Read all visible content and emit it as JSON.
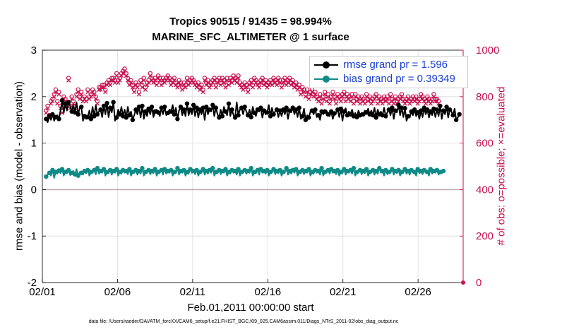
{
  "title_line1": "Tropics 90515 / 91435 = 98.994%",
  "title_line2": "MARINE_SFC_ALTIMETER @ 1 surface",
  "xlabel": "Feb.01,2011 00:00:00 start",
  "ylabel_left": "rmse and bias (model - observation)",
  "ylabel_right": "# of obs: o=possible; ×=evaluated",
  "footnote": "data file: /Users/raeder/DAI/ATM_forcXX/CAM6_setup/f.e21.FHIST_BGC.f09_025.CAM6assim.011/Diags_NTrS_2011-02/obs_diag_output.nc",
  "colors": {
    "rmse": "#000000",
    "bias": "#0e8a87",
    "counts": "#c8104f",
    "legend_text": "#1a3fd6",
    "grid": "#dcdcdc",
    "zero_line": "#c6a8b4"
  },
  "chart_data": {
    "type": "line",
    "x_tick_labels": [
      "02/01",
      "02/06",
      "02/11",
      "02/16",
      "02/21",
      "02/26"
    ],
    "x_tick_days": [
      0,
      5,
      10,
      15,
      20,
      25
    ],
    "xlim_days": [
      0,
      28
    ],
    "ylim_left": [
      -2,
      3
    ],
    "y_ticks_left": [
      "-2",
      "-1",
      "0",
      "1",
      "2",
      "3"
    ],
    "ylim_right": [
      0,
      1000
    ],
    "y_ticks_right": [
      "0",
      "200",
      "400",
      "600",
      "800",
      "1000"
    ],
    "grid": true,
    "legend_position": "top-right",
    "series": [
      {
        "name": "rmse grand pr = 1.596",
        "axis": "left",
        "values": [
          1.52,
          1.45,
          1.58,
          1.5,
          1.62,
          1.48,
          1.56,
          1.6,
          1.52,
          1.7,
          1.92,
          1.65,
          1.85,
          1.7,
          1.88,
          1.8,
          1.68,
          1.82,
          1.66,
          1.88,
          1.62,
          1.76,
          1.78,
          1.48,
          1.58,
          1.52,
          1.56,
          1.7,
          1.52,
          1.78,
          1.58,
          1.82,
          1.62,
          1.68,
          1.72,
          1.56,
          1.8,
          1.62,
          1.86,
          1.56,
          1.76,
          1.66,
          1.88,
          1.48,
          1.55,
          1.72,
          1.62,
          1.78,
          1.58,
          1.72,
          1.55,
          1.78,
          1.6,
          1.68,
          1.5,
          1.6,
          1.72,
          1.62,
          1.78,
          1.55,
          1.8,
          1.52,
          1.68,
          1.58,
          1.74,
          1.62,
          1.78,
          1.56,
          1.68,
          1.72,
          1.66,
          1.58,
          1.76,
          1.62,
          1.78,
          1.6,
          1.65,
          1.72,
          1.68,
          1.82,
          1.62,
          1.76,
          1.52,
          1.7,
          1.78,
          1.6,
          1.72,
          1.58,
          1.85,
          1.6,
          1.72,
          1.62,
          1.82,
          1.58,
          1.76,
          1.55,
          1.72,
          1.62,
          1.76,
          1.5,
          1.78,
          1.62,
          1.72,
          1.68,
          1.82,
          1.58,
          1.76,
          1.62,
          1.55,
          1.72,
          1.58,
          1.78,
          1.68,
          1.6,
          1.85,
          1.58,
          1.72,
          1.6,
          1.55,
          1.88,
          1.6,
          1.72,
          1.76,
          1.62,
          1.78,
          1.68,
          1.6,
          1.72,
          1.56,
          1.78,
          1.65,
          1.58,
          1.72,
          1.68,
          1.76,
          1.55,
          1.7,
          1.62,
          1.66,
          1.82,
          1.58,
          1.76,
          1.62,
          1.68,
          1.72,
          1.56,
          1.7,
          1.58,
          1.72,
          1.62,
          1.76,
          1.52,
          1.7,
          1.66,
          1.76,
          1.62,
          1.72,
          1.56,
          1.76,
          1.52,
          1.58,
          1.74,
          1.5,
          1.6,
          1.55,
          1.68,
          1.7,
          1.62,
          1.72,
          1.56,
          1.6,
          1.5,
          1.68,
          1.62,
          1.68,
          1.7,
          1.62,
          1.58,
          1.68,
          1.52,
          1.64,
          1.66,
          1.72,
          1.56,
          1.74,
          1.48,
          1.68,
          1.75,
          1.6,
          1.68,
          1.62,
          1.72,
          1.58,
          1.65,
          1.56,
          1.7,
          1.6,
          1.65,
          1.62,
          1.7,
          1.66,
          1.74,
          1.62,
          1.7,
          1.6,
          1.76,
          1.55,
          1.72,
          1.62,
          1.68,
          1.6,
          1.76,
          1.58,
          1.66,
          1.72,
          1.6,
          1.76,
          1.52,
          1.7,
          1.66,
          1.82,
          1.6,
          1.76,
          1.56,
          1.75,
          1.48,
          1.58,
          1.55,
          1.68,
          1.6,
          1.72,
          1.58,
          1.66,
          1.52,
          1.7,
          1.56,
          1.76,
          1.62,
          1.72,
          1.55,
          1.68,
          1.6,
          1.74,
          1.56,
          1.72,
          1.58,
          1.8,
          1.52,
          1.7,
          1.62,
          1.78,
          1.55,
          1.72,
          1.68,
          1.6,
          1.74,
          1.5,
          1.55,
          1.62
        ]
      },
      {
        "name": "bias grand pr = 0.39349",
        "axis": "left",
        "values": [
          0.28,
          0.32,
          0.36,
          0.3,
          0.42,
          0.25,
          0.38,
          0.34,
          0.41,
          0.35,
          0.44,
          0.3,
          0.38,
          0.35,
          0.42,
          0.31,
          0.36,
          0.4,
          0.33,
          0.44,
          0.3,
          0.38,
          0.36,
          0.32,
          0.4,
          0.35,
          0.42,
          0.3,
          0.38,
          0.36,
          0.42,
          0.33,
          0.46,
          0.34,
          0.4,
          0.36,
          0.44,
          0.3,
          0.38,
          0.35,
          0.42,
          0.32,
          0.4,
          0.36,
          0.44,
          0.3,
          0.38,
          0.34,
          0.42,
          0.36,
          0.4,
          0.33,
          0.44,
          0.3,
          0.38,
          0.36,
          0.42,
          0.32,
          0.4,
          0.34,
          0.46,
          0.3,
          0.38,
          0.36,
          0.42,
          0.33,
          0.4,
          0.35,
          0.44,
          0.3,
          0.38,
          0.36,
          0.42,
          0.32,
          0.44,
          0.34,
          0.4,
          0.36,
          0.42,
          0.3,
          0.38,
          0.35,
          0.46,
          0.32,
          0.4,
          0.36,
          0.42,
          0.3,
          0.38,
          0.34,
          0.44,
          0.36,
          0.4,
          0.33,
          0.42,
          0.3,
          0.38,
          0.36,
          0.44,
          0.32,
          0.4,
          0.34,
          0.42,
          0.36,
          0.46,
          0.3,
          0.38,
          0.35,
          0.42,
          0.33,
          0.4,
          0.36,
          0.44,
          0.3,
          0.38,
          0.34,
          0.42,
          0.36,
          0.4,
          0.32,
          0.44,
          0.3,
          0.38,
          0.36,
          0.42,
          0.34,
          0.4,
          0.36,
          0.46,
          0.3,
          0.38,
          0.35,
          0.42,
          0.32,
          0.44,
          0.36,
          0.4,
          0.34,
          0.42,
          0.3,
          0.38,
          0.36,
          0.44,
          0.33,
          0.4,
          0.35,
          0.42,
          0.3,
          0.38,
          0.36,
          0.46,
          0.32,
          0.4,
          0.34,
          0.42,
          0.36,
          0.44,
          0.3,
          0.38,
          0.35,
          0.42,
          0.33,
          0.4,
          0.36,
          0.44,
          0.3,
          0.38,
          0.34,
          0.42,
          0.36,
          0.4,
          0.32,
          0.46,
          0.3,
          0.38,
          0.36,
          0.42,
          0.34,
          0.44,
          0.36,
          0.4,
          0.33,
          0.42,
          0.3,
          0.38,
          0.35,
          0.44,
          0.32,
          0.4,
          0.36,
          0.42,
          0.34,
          0.46,
          0.3,
          0.38,
          0.36,
          0.42,
          0.33,
          0.4,
          0.35,
          0.44,
          0.3,
          0.38,
          0.36,
          0.42,
          0.32,
          0.4,
          0.34,
          0.46,
          0.36,
          0.4,
          0.3,
          0.42,
          0.33,
          0.38,
          0.36,
          0.44,
          0.32,
          0.4,
          0.35,
          0.42,
          0.3,
          0.38,
          0.36,
          0.44,
          0.34,
          0.4,
          0.32,
          0.42,
          0.36,
          0.38,
          0.3,
          0.44,
          0.35,
          0.4,
          0.33,
          0.42,
          0.36,
          0.38,
          0.3,
          0.44,
          0.34,
          0.4,
          0.36,
          0.42,
          0.32,
          0.38,
          0.35,
          0.4
        ]
      },
      {
        "name": "possible",
        "axis": "right",
        "values": [
          740,
          760,
          720,
          780,
          790,
          810,
          830,
          780,
          820,
          760,
          740,
          800,
          790,
          770,
          880,
          760,
          800,
          780,
          760,
          810,
          830,
          800,
          820,
          790,
          800,
          790,
          830,
          800,
          810,
          830,
          820,
          800,
          780,
          840,
          840,
          850,
          850,
          830,
          860,
          870,
          860,
          880,
          880,
          870,
          900,
          870,
          880,
          900,
          910,
          920,
          900,
          880,
          860,
          870,
          850,
          830,
          860,
          850,
          820,
          870,
          850,
          880,
          840,
          860,
          870,
          900,
          880,
          870,
          880,
          860,
          890,
          880,
          860,
          880,
          870,
          880,
          890,
          880,
          860,
          870,
          880,
          860,
          850,
          870,
          860,
          840,
          860,
          850,
          880,
          860,
          870,
          880,
          870,
          860,
          850,
          860,
          840,
          850,
          830,
          880,
          860,
          870,
          850,
          860,
          870,
          880,
          850,
          870,
          880,
          860,
          880,
          870,
          850,
          880,
          860,
          880,
          870,
          890,
          880,
          870,
          890,
          860,
          850,
          840,
          860,
          850,
          830,
          860,
          870,
          850,
          880,
          870,
          860,
          850,
          870,
          880,
          860,
          870,
          850,
          860,
          870,
          860,
          880,
          870,
          860,
          880,
          870,
          850,
          870,
          880,
          860,
          870,
          880,
          860,
          870,
          850,
          860,
          840,
          850,
          820,
          840,
          830,
          810,
          830,
          800,
          820,
          830,
          810,
          820,
          800,
          790,
          810,
          780,
          800,
          820,
          790,
          810,
          780,
          800,
          820,
          800,
          780,
          810,
          800,
          790,
          810,
          820,
          790,
          810,
          800,
          790,
          810,
          780,
          810,
          790,
          800,
          780,
          800,
          790,
          780,
          810,
          790,
          800,
          780,
          790,
          800,
          810,
          780,
          800,
          790,
          780,
          800,
          790,
          800,
          780,
          810,
          790,
          780,
          800,
          780,
          790,
          800,
          810,
          790,
          780,
          790,
          800,
          780,
          790,
          800,
          790,
          800,
          780,
          790,
          810,
          800,
          790,
          780,
          800,
          790,
          780,
          790,
          810,
          790,
          790,
          780
        ]
      },
      {
        "name": "evaluated",
        "axis": "right",
        "values": [
          730,
          750,
          710,
          770,
          780,
          800,
          820,
          770,
          810,
          750,
          730,
          790,
          780,
          760,
          870,
          750,
          790,
          770,
          750,
          800,
          820,
          790,
          810,
          780,
          790,
          780,
          820,
          790,
          800,
          820,
          810,
          790,
          770,
          830,
          830,
          840,
          840,
          820,
          850,
          860,
          850,
          870,
          870,
          860,
          890,
          860,
          870,
          890,
          900,
          910,
          890,
          870,
          850,
          860,
          840,
          820,
          850,
          840,
          810,
          860,
          840,
          870,
          830,
          850,
          860,
          890,
          870,
          860,
          870,
          850,
          880,
          870,
          850,
          870,
          860,
          870,
          880,
          870,
          850,
          860,
          870,
          850,
          840,
          860,
          850,
          830,
          850,
          840,
          870,
          850,
          860,
          870,
          860,
          850,
          840,
          850,
          830,
          840,
          820,
          870,
          850,
          860,
          840,
          850,
          860,
          870,
          840,
          860,
          870,
          850,
          870,
          860,
          840,
          870,
          850,
          870,
          860,
          880,
          870,
          860,
          880,
          850,
          840,
          830,
          850,
          840,
          820,
          850,
          860,
          840,
          870,
          860,
          850,
          840,
          860,
          870,
          850,
          860,
          840,
          850,
          860,
          850,
          870,
          860,
          850,
          870,
          860,
          840,
          860,
          870,
          850,
          860,
          870,
          850,
          860,
          840,
          850,
          830,
          840,
          810,
          830,
          820,
          800,
          820,
          790,
          810,
          820,
          800,
          810,
          790,
          780,
          800,
          770,
          790,
          810,
          780,
          800,
          770,
          790,
          810,
          790,
          770,
          800,
          790,
          780,
          800,
          810,
          780,
          800,
          790,
          780,
          800,
          770,
          800,
          780,
          790,
          770,
          790,
          780,
          770,
          800,
          780,
          790,
          770,
          780,
          790,
          800,
          770,
          790,
          780,
          770,
          790,
          780,
          790,
          770,
          800,
          780,
          770,
          790,
          770,
          780,
          790,
          800,
          780,
          770,
          780,
          790,
          770,
          780,
          790,
          780,
          790,
          770,
          780,
          800,
          790,
          780,
          770,
          790,
          780,
          770,
          780,
          800,
          780,
          780,
          770
        ]
      }
    ],
    "end_marker_right": 0
  }
}
